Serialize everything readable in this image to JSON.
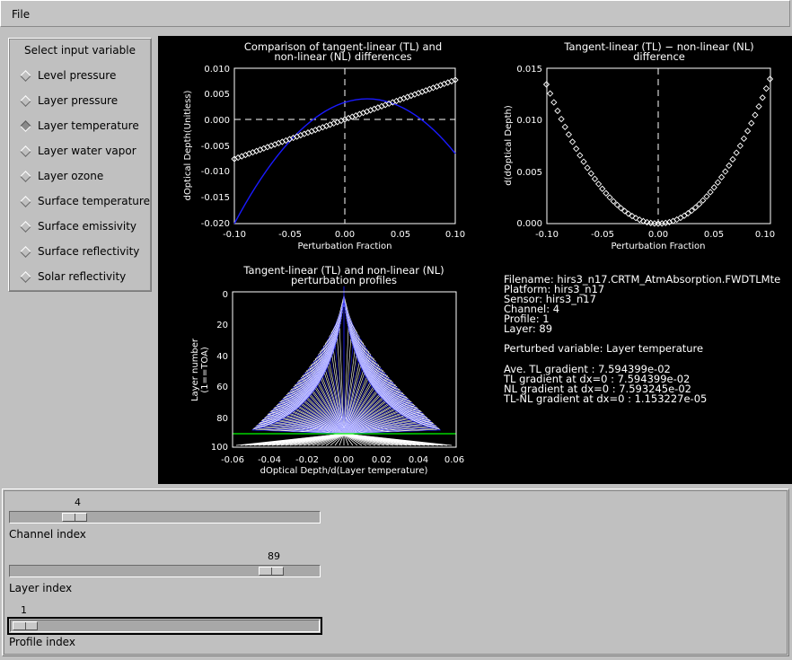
{
  "menu": {
    "file": "File"
  },
  "variables": {
    "title": "Select input variable",
    "selected": 2,
    "items": [
      "Level pressure",
      "Layer pressure",
      "Layer temperature",
      "Layer water vapor",
      "Layer ozone",
      "Surface temperature",
      "Surface emissivity",
      "Surface reflectivity",
      "Solar reflectivity"
    ]
  },
  "plots": {
    "p1": {
      "title1": "Comparison of tangent-linear (TL) and",
      "title2": "non-linear (NL) differences",
      "xlabel": "Perturbation Fraction",
      "ylabel": "dOptical Depth(Unitless)",
      "xticks": [
        "-0.10",
        "-0.05",
        "0.00",
        "0.05",
        "0.10"
      ],
      "yticks": [
        "0.010",
        "0.005",
        "0.000",
        "-0.005",
        "-0.010",
        "-0.015",
        "-0.020"
      ]
    },
    "p2": {
      "title1": "Tangent-linear (TL) − non-linear (NL)",
      "title2": "difference",
      "xlabel": "Perturbation Fraction",
      "ylabel": "d(dOptical Depth)",
      "xticks": [
        "-0.10",
        "-0.05",
        "0.00",
        "0.05",
        "0.10"
      ],
      "yticks": [
        "0.015",
        "0.010",
        "0.005",
        "0.000"
      ]
    },
    "p3": {
      "title1": "Tangent-linear (TL) and non-linear (NL)",
      "title2": "perturbation profiles",
      "xlabel": "dOptical Depth/d(Layer temperature)",
      "ylabel1": "Layer number",
      "ylabel2": "(1==TOA)",
      "xticks": [
        "-0.06",
        "-0.04",
        "-0.02",
        "0.00",
        "0.02",
        "0.04",
        "0.06"
      ],
      "yticks": [
        "0",
        "20",
        "40",
        "60",
        "80",
        "100"
      ]
    }
  },
  "info": {
    "filename": "Filename: hirs3_n17.CRTM_AtmAbsorption.FWDTLMte",
    "platform": "Platform: hirs3_n17",
    "sensor": "Sensor: hirs3_n17",
    "channel": "Channel: 4",
    "profile": "Profile: 1",
    "layer": "Layer: 89",
    "perturbed": "Perturbed variable: Layer temperature",
    "ave_tl": "Ave. TL gradient :  7.594399e-02",
    "tl_grad": "TL gradient at dx=0 :  7.594399e-02",
    "nl_grad": "NL gradient at dx=0 :  7.593245e-02",
    "tlnl_grad": "TL-NL gradient at dx=0 :  1.153227e-05"
  },
  "sliders": {
    "channel": {
      "value": "4",
      "label": "Channel index",
      "fraction": 0.18
    },
    "layer": {
      "value": "89",
      "label": "Layer index",
      "fraction": 0.88
    },
    "profile": {
      "value": "1",
      "label": "Profile index",
      "fraction": 0.0
    }
  },
  "colors": {
    "tl": "#ffffff",
    "nl": "#1a1aff",
    "layer_line": "#00ff00"
  }
}
